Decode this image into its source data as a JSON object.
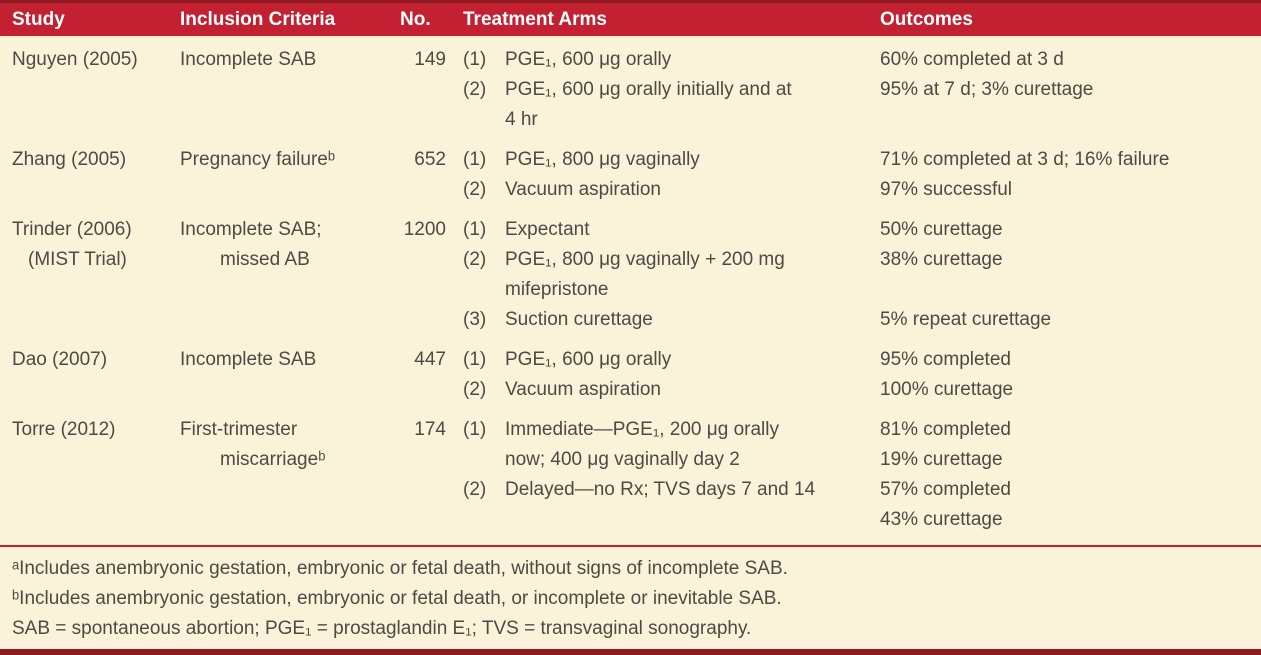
{
  "colors": {
    "header_bg": "#c32031",
    "accent_dark": "#8e1a20",
    "page_bg": "#fbf2da",
    "body_text": "#4c4b43",
    "header_text": "#ffffff"
  },
  "table": {
    "columns": [
      "Study",
      "Inclusion Criteria",
      "No.",
      "Treatment Arms",
      "Outcomes"
    ],
    "rows": [
      {
        "study": [
          "Nguyen (2005)"
        ],
        "criteria": [
          "Incomplete SAB"
        ],
        "no": "149",
        "arms": [
          {
            "m": "(1)",
            "t": "PGE₁, 600 μg orally"
          },
          {
            "m": "(2)",
            "t": "PGE₁, 600 μg orally initially and at"
          },
          {
            "m": "",
            "t": "4 hr"
          }
        ],
        "outcomes": [
          "60% completed at 3 d",
          "95% at 7 d; 3% curettage"
        ]
      },
      {
        "study": [
          "Zhang (2005)"
        ],
        "criteria": [
          "Pregnancy failureᵇ"
        ],
        "no": "652",
        "arms": [
          {
            "m": "(1)",
            "t": "PGE₁, 800 μg vaginally"
          },
          {
            "m": "(2)",
            "t": "Vacuum aspiration"
          }
        ],
        "outcomes": [
          "71% completed at 3 d; 16% failure",
          "97% successful"
        ]
      },
      {
        "study": [
          "Trinder (2006)",
          "(MIST Trial)"
        ],
        "criteria": [
          "Incomplete SAB;",
          "missed AB"
        ],
        "no": "1200",
        "arms": [
          {
            "m": "(1)",
            "t": "Expectant"
          },
          {
            "m": "(2)",
            "t": "PGE₁, 800 μg vaginally + 200 mg"
          },
          {
            "m": "",
            "t": "mifepristone"
          },
          {
            "m": "(3)",
            "t": "Suction curettage"
          }
        ],
        "outcomes": [
          "50% curettage",
          "38% curettage",
          "",
          "5% repeat curettage"
        ]
      },
      {
        "study": [
          "Dao (2007)"
        ],
        "criteria": [
          "Incomplete SAB"
        ],
        "no": "447",
        "arms": [
          {
            "m": "(1)",
            "t": "PGE₁, 600 μg orally"
          },
          {
            "m": "(2)",
            "t": "Vacuum aspiration"
          }
        ],
        "outcomes": [
          "95% completed",
          "100% curettage"
        ]
      },
      {
        "study": [
          "Torre (2012)"
        ],
        "criteria": [
          "First-trimester",
          "miscarriageᵇ"
        ],
        "no": "174",
        "arms": [
          {
            "m": "(1)",
            "t": "Immediate—PGE₁, 200 μg orally"
          },
          {
            "m": "",
            "t": "now; 400 μg vaginally day 2"
          },
          {
            "m": "(2)",
            "t": "Delayed—no Rx; TVS days 7 and 14"
          }
        ],
        "outcomes": [
          "81% completed",
          "19% curettage",
          "57% completed",
          "43% curettage"
        ]
      }
    ]
  },
  "footnotes": [
    "ᵃIncludes anembryonic gestation, embryonic or fetal death, without signs of incomplete SAB.",
    "ᵇIncludes anembryonic gestation, embryonic or fetal death, or incomplete or inevitable SAB.",
    "SAB = spontaneous abortion; PGE₁ = prostaglandin E₁; TVS = transvaginal sonography."
  ]
}
